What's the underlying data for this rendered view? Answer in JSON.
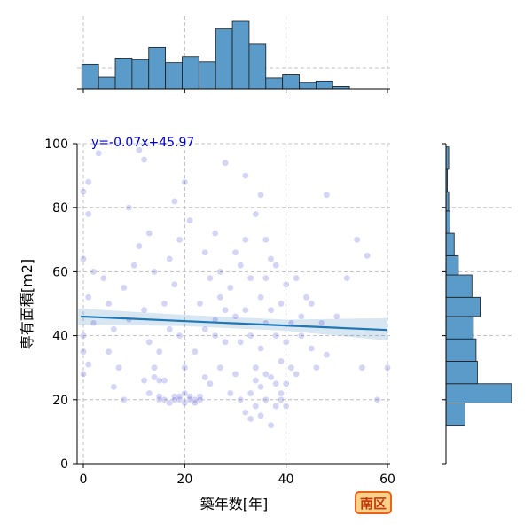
{
  "chart_data": {
    "type": "scatter",
    "xlabel": "築年数[年]",
    "ylabel": "専有面積[m2]",
    "xlim": [
      -1,
      60
    ],
    "ylim": [
      0,
      100
    ],
    "x_ticks": [
      0,
      20,
      40,
      60
    ],
    "y_ticks": [
      0,
      20,
      40,
      60,
      80,
      100
    ],
    "grid": true,
    "point_color": "#3a3ad0",
    "regression": {
      "label": "y=-0.07x+45.97",
      "slope": -0.07,
      "intercept": 45.97,
      "color": "#1f77b4",
      "label_color": "#0000cc",
      "ci_band": [
        {
          "x": -1,
          "lo": 43.5,
          "hi": 48.5
        },
        {
          "x": 20,
          "lo": 43.0,
          "hi": 46.5
        },
        {
          "x": 40,
          "lo": 41.5,
          "hi": 45.0
        },
        {
          "x": 60,
          "lo": 38.5,
          "hi": 45.5
        }
      ]
    },
    "top_histogram": {
      "color": "#5b9bc9",
      "bin_width": 3.3,
      "bin_start": -0.3,
      "counts": [
        32,
        15,
        40,
        38,
        54,
        34,
        42,
        35,
        78,
        88,
        58,
        14,
        18,
        8,
        10,
        3
      ]
    },
    "right_histogram": {
      "color": "#5b9bc9",
      "bin_edges": [
        12,
        19,
        25,
        32,
        39,
        46,
        52,
        59,
        65,
        72,
        79,
        85,
        92,
        99
      ],
      "counts": [
        14,
        48,
        23,
        22,
        20,
        25,
        19,
        9,
        6,
        3,
        2,
        1,
        2
      ]
    },
    "points": [
      [
        1,
        88
      ],
      [
        0,
        85
      ],
      [
        3,
        97
      ],
      [
        1,
        78
      ],
      [
        0,
        64
      ],
      [
        2,
        60
      ],
      [
        1,
        52
      ],
      [
        0,
        35
      ],
      [
        1,
        31
      ],
      [
        0,
        28
      ],
      [
        2,
        44
      ],
      [
        0,
        40
      ],
      [
        4,
        58
      ],
      [
        5,
        50
      ],
      [
        6,
        42
      ],
      [
        7,
        30
      ],
      [
        6,
        24
      ],
      [
        8,
        20
      ],
      [
        5,
        35
      ],
      [
        9,
        45
      ],
      [
        8,
        55
      ],
      [
        10,
        62
      ],
      [
        11,
        68
      ],
      [
        9,
        80
      ],
      [
        12,
        95
      ],
      [
        11,
        98
      ],
      [
        13,
        72
      ],
      [
        14,
        60
      ],
      [
        12,
        48
      ],
      [
        13,
        38
      ],
      [
        14,
        30
      ],
      [
        12,
        26
      ],
      [
        13,
        22
      ],
      [
        15,
        20
      ],
      [
        16,
        26
      ],
      [
        15,
        35
      ],
      [
        17,
        42
      ],
      [
        16,
        50
      ],
      [
        18,
        56
      ],
      [
        17,
        64
      ],
      [
        19,
        70
      ],
      [
        18,
        82
      ],
      [
        20,
        88
      ],
      [
        21,
        76
      ],
      [
        19,
        40
      ],
      [
        20,
        30
      ],
      [
        18,
        21
      ],
      [
        19,
        20
      ],
      [
        21,
        20
      ],
      [
        22,
        20
      ],
      [
        23,
        21
      ],
      [
        20,
        22
      ],
      [
        24,
        27
      ],
      [
        25,
        25
      ],
      [
        22,
        35
      ],
      [
        24,
        42
      ],
      [
        23,
        50
      ],
      [
        25,
        58
      ],
      [
        24,
        66
      ],
      [
        26,
        72
      ],
      [
        27,
        60
      ],
      [
        26,
        45
      ],
      [
        28,
        38
      ],
      [
        27,
        30
      ],
      [
        29,
        22
      ],
      [
        30,
        28
      ],
      [
        31,
        38
      ],
      [
        30,
        46
      ],
      [
        29,
        55
      ],
      [
        31,
        62
      ],
      [
        32,
        70
      ],
      [
        33,
        58
      ],
      [
        32,
        48
      ],
      [
        33,
        40
      ],
      [
        34,
        30
      ],
      [
        33,
        22
      ],
      [
        34,
        18
      ],
      [
        35,
        24
      ],
      [
        36,
        20
      ],
      [
        35,
        36
      ],
      [
        36,
        44
      ],
      [
        35,
        52
      ],
      [
        36,
        58
      ],
      [
        37,
        64
      ],
      [
        35,
        84
      ],
      [
        36,
        70
      ],
      [
        38,
        62
      ],
      [
        37,
        48
      ],
      [
        38,
        40
      ],
      [
        39,
        32
      ],
      [
        38,
        25
      ],
      [
        39,
        20
      ],
      [
        40,
        18
      ],
      [
        39,
        50
      ],
      [
        40,
        56
      ],
      [
        41,
        44
      ],
      [
        40,
        38
      ],
      [
        41,
        30
      ],
      [
        42,
        28
      ],
      [
        43,
        46
      ],
      [
        42,
        58
      ],
      [
        44,
        52
      ],
      [
        43,
        40
      ],
      [
        45,
        36
      ],
      [
        46,
        30
      ],
      [
        45,
        50
      ],
      [
        47,
        44
      ],
      [
        48,
        34
      ],
      [
        48,
        84
      ],
      [
        50,
        46
      ],
      [
        52,
        58
      ],
      [
        54,
        70
      ],
      [
        56,
        65
      ],
      [
        55,
        30
      ],
      [
        58,
        20
      ],
      [
        60,
        30
      ],
      [
        28,
        94
      ],
      [
        32,
        90
      ],
      [
        34,
        78
      ],
      [
        30,
        66
      ],
      [
        27,
        52
      ],
      [
        26,
        40
      ],
      [
        28,
        48
      ],
      [
        37,
        27
      ],
      [
        34,
        26
      ],
      [
        36,
        28
      ],
      [
        38,
        18
      ],
      [
        32,
        16
      ],
      [
        33,
        14
      ],
      [
        31,
        20
      ],
      [
        35,
        15
      ],
      [
        37,
        12
      ],
      [
        39,
        22
      ],
      [
        40,
        25
      ],
      [
        15,
        21
      ],
      [
        16,
        20
      ],
      [
        17,
        19
      ],
      [
        18,
        20
      ],
      [
        19,
        21
      ],
      [
        20,
        19
      ],
      [
        21,
        21
      ],
      [
        22,
        19
      ],
      [
        23,
        20
      ],
      [
        14,
        27
      ],
      [
        15,
        26
      ]
    ]
  },
  "badge": {
    "label": "南区",
    "fill": "#ffd08a",
    "border": "#e8641a",
    "text_color": "#c0390c"
  }
}
